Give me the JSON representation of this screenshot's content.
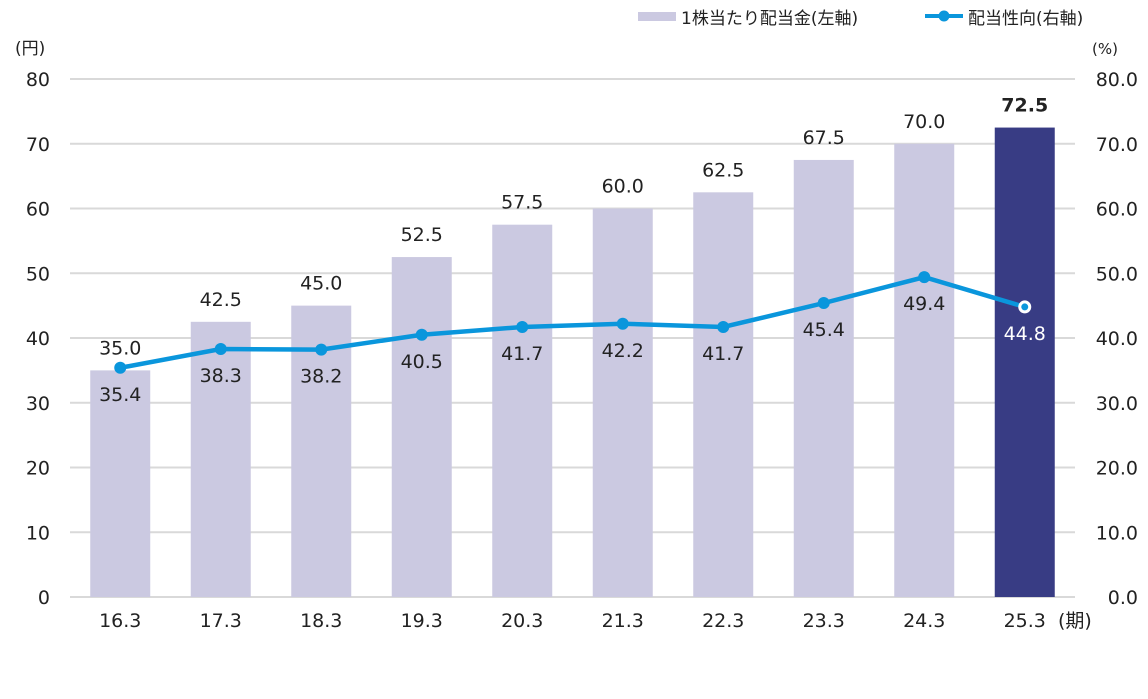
{
  "chart_data": {
    "type": "bar",
    "categories": [
      "16.3",
      "17.3",
      "18.3",
      "19.3",
      "20.3",
      "21.3",
      "22.3",
      "23.3",
      "24.3",
      "25.3"
    ],
    "x_unit": "(期)",
    "series": [
      {
        "name": "1株当たり配当金(左軸)",
        "type": "bar",
        "axis": "left",
        "values": [
          35.0,
          42.5,
          45.0,
          52.5,
          57.5,
          60.0,
          62.5,
          67.5,
          70.0,
          72.5
        ],
        "color": "#CBC9E1",
        "highlight_color": "#383C84",
        "highlight_index": 9
      },
      {
        "name": "配当性向(右軸)",
        "type": "line",
        "axis": "right",
        "values": [
          35.4,
          38.3,
          38.2,
          40.5,
          41.7,
          42.2,
          41.7,
          45.4,
          49.4,
          44.8
        ],
        "color": "#0A96DC"
      }
    ],
    "left_axis": {
      "unit": "(円)",
      "ylim": [
        0,
        80
      ],
      "ticks": [
        "0",
        "10",
        "20",
        "30",
        "40",
        "50",
        "60",
        "70",
        "80"
      ]
    },
    "right_axis": {
      "unit": "(%)",
      "ylim": [
        0,
        80
      ],
      "ticks": [
        "0.0",
        "10.0",
        "20.0",
        "30.0",
        "40.0",
        "50.0",
        "60.0",
        "70.0",
        "80.0"
      ]
    },
    "bar_labels": [
      "35.0",
      "42.5",
      "45.0",
      "52.5",
      "57.5",
      "60.0",
      "62.5",
      "67.5",
      "70.0",
      "72.5"
    ],
    "line_labels": [
      "35.4",
      "38.3",
      "38.2",
      "40.5",
      "41.7",
      "42.2",
      "41.7",
      "45.4",
      "49.4",
      "44.8"
    ],
    "grid": true,
    "legend": "top-right"
  }
}
